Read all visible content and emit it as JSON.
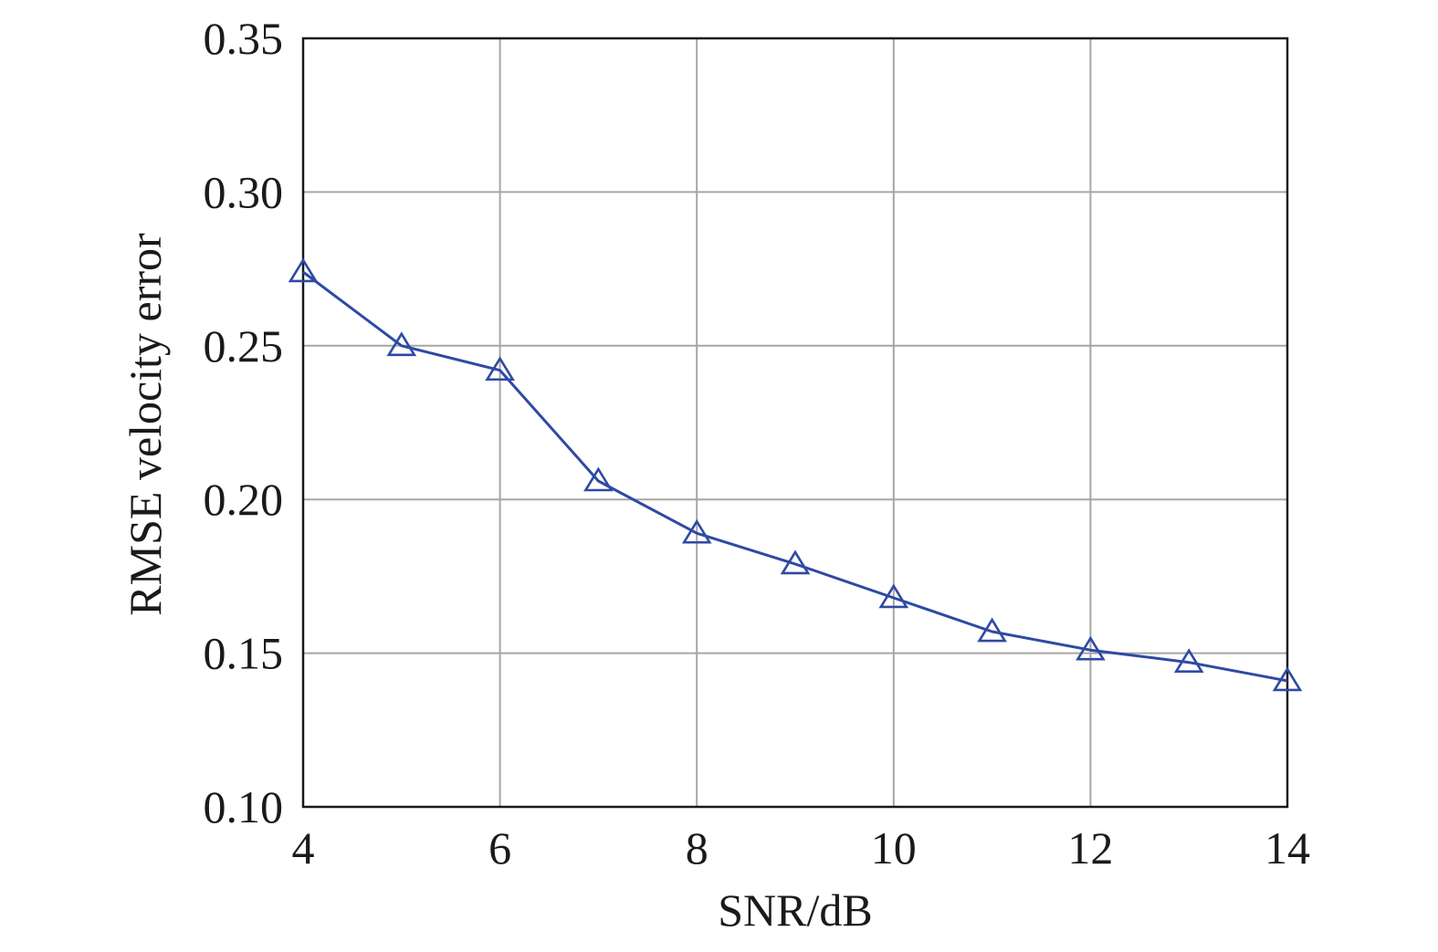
{
  "chart_data": {
    "type": "line",
    "xlabel": "SNR/dB",
    "ylabel": "RMSE velocity error",
    "xlim": [
      4,
      14
    ],
    "ylim": [
      0.1,
      0.35
    ],
    "xticks": [
      4,
      6,
      8,
      10,
      12,
      14
    ],
    "xtick_labels": [
      "4",
      "6",
      "8",
      "10",
      "12",
      "14"
    ],
    "yticks": [
      0.1,
      0.15,
      0.2,
      0.25,
      0.3,
      0.35
    ],
    "ytick_labels": [
      "0.10",
      "0.15",
      "0.20",
      "0.25",
      "0.30",
      "0.35"
    ],
    "grid": true,
    "legend": "none",
    "series": [
      {
        "color": "#2e4aa3",
        "marker": "triangle-open",
        "x": [
          4,
          5,
          6,
          7,
          8,
          9,
          10,
          11,
          12,
          13,
          14
        ],
        "values": [
          0.274,
          0.25,
          0.242,
          0.206,
          0.189,
          0.179,
          0.168,
          0.157,
          0.151,
          0.147,
          0.141
        ]
      }
    ]
  }
}
